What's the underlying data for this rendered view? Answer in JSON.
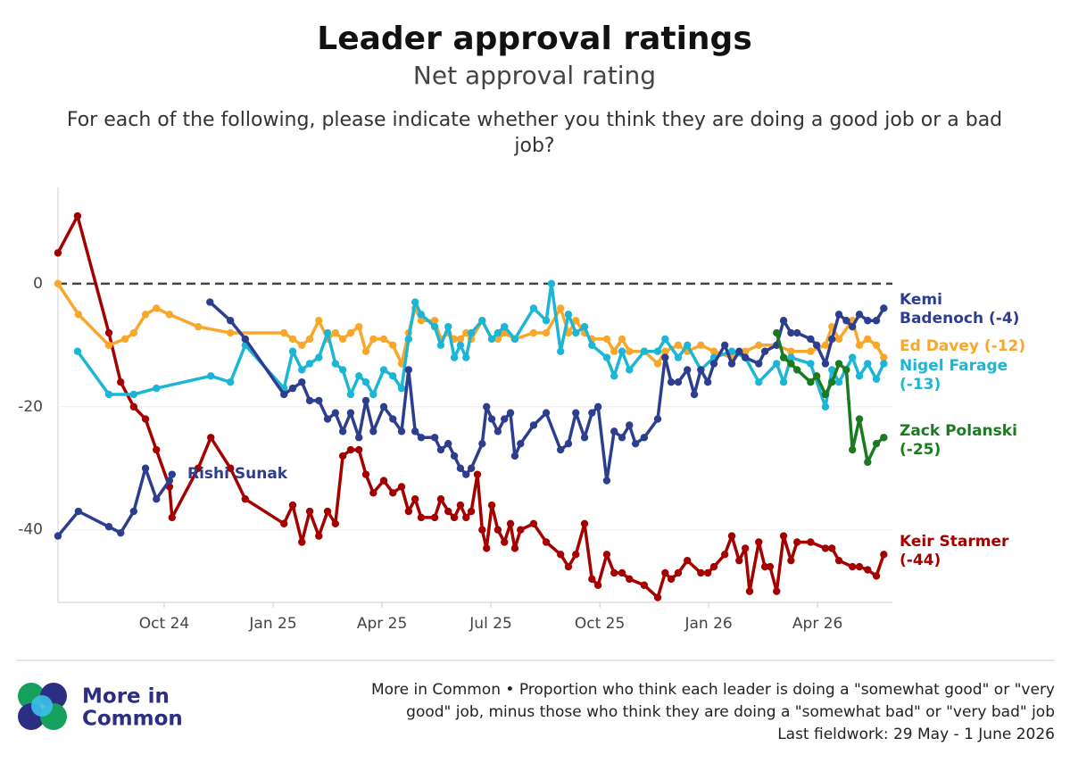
{
  "chart_data": {
    "type": "line",
    "title": "Leader approval ratings",
    "subtitle": "Net approval rating",
    "question": [
      "For each of the following, please indicate whether you think they are doing a good job or a bad",
      "job?"
    ],
    "xlim": [
      2024.5,
      2026.43
    ],
    "xticks": [
      {
        "value": 2024.75,
        "label": "Oct 24"
      },
      {
        "value": 2025.0,
        "label": "Jan 25"
      },
      {
        "value": 2025.25,
        "label": "Apr 25"
      },
      {
        "value": 2025.5,
        "label": "Jul 25"
      },
      {
        "value": 2025.75,
        "label": "Oct 25"
      },
      {
        "value": 2026.0,
        "label": "Jan 26"
      },
      {
        "value": 2026.25,
        "label": "Apr 26"
      }
    ],
    "ylim": [
      -51.5,
      15.5
    ],
    "yticks": [
      -40,
      -20,
      0
    ],
    "grid": true,
    "reference_line": 0,
    "series": [
      {
        "label_lines": [
          "Keir Starmer",
          "(-44)"
        ],
        "color": "#a50000",
        "x": [
          2024.506,
          2024.551,
          2024.623,
          2024.65,
          2024.68,
          2024.707,
          2024.732,
          2024.762,
          2024.768,
          2024.828,
          2024.857,
          2024.902,
          2024.936,
          2025.025,
          2025.045,
          2025.066,
          2025.084,
          2025.105,
          2025.125,
          2025.143,
          2025.16,
          2025.178,
          2025.197,
          2025.213,
          2025.23,
          2025.254,
          2025.275,
          2025.295,
          2025.311,
          2025.326,
          2025.34,
          2025.371,
          2025.385,
          2025.402,
          2025.416,
          2025.43,
          2025.443,
          2025.455,
          2025.469,
          2025.48,
          2025.49,
          2025.502,
          2025.516,
          2025.531,
          2025.545,
          2025.555,
          2025.568,
          2025.598,
          2025.627,
          2025.66,
          2025.678,
          2025.695,
          2025.715,
          2025.732,
          2025.746,
          2025.766,
          2025.783,
          2025.801,
          2025.818,
          2025.852,
          2025.883,
          2025.9,
          2025.914,
          2025.93,
          2025.951,
          2025.982,
          2025.998,
          2026.012,
          2026.037,
          2026.053,
          2026.07,
          2026.084,
          2026.094,
          2026.115,
          2026.129,
          2026.141,
          2026.156,
          2026.172,
          2026.189,
          2026.203,
          2026.234,
          2026.268,
          2026.283,
          2026.299,
          2026.33,
          2026.346,
          2026.365,
          2026.385,
          2026.402
        ],
        "values": [
          5,
          11,
          -8,
          -16,
          -20,
          -22,
          -27,
          -33,
          -38,
          -30,
          -25,
          -30,
          -35,
          -39,
          -36,
          -42,
          -37,
          -41,
          -37,
          -39,
          -28,
          -27,
          -27,
          -31,
          -34,
          -32,
          -34,
          -33,
          -37,
          -35,
          -38,
          -38,
          -35,
          -37,
          -38,
          -36,
          -38,
          -37,
          -31,
          -40,
          -43,
          -36,
          -40,
          -42,
          -39,
          -43,
          -40,
          -39,
          -42,
          -44,
          -46,
          -44,
          -39,
          -48,
          -49,
          -44,
          -47,
          -47,
          -48,
          -49,
          -51,
          -47,
          -48,
          -47,
          -45,
          -47,
          -47,
          -46,
          -44,
          -41,
          -45,
          -43,
          -50,
          -42,
          -46,
          -46,
          -50,
          -41,
          -45,
          -42,
          -42,
          -43,
          -43,
          -45,
          -46,
          -46,
          -46.5,
          -47.5,
          -44
        ]
      },
      {
        "label_lines": [
          "Ed Davey (-12)"
        ],
        "color": "#f9a72b",
        "x": [
          2024.506,
          2024.553,
          2024.623,
          2024.66,
          2024.68,
          2024.707,
          2024.732,
          2024.762,
          2024.828,
          2024.902,
          2025.025,
          2025.045,
          2025.066,
          2025.084,
          2025.105,
          2025.125,
          2025.143,
          2025.16,
          2025.178,
          2025.197,
          2025.213,
          2025.23,
          2025.254,
          2025.275,
          2025.295,
          2025.311,
          2025.326,
          2025.34,
          2025.371,
          2025.385,
          2025.402,
          2025.416,
          2025.43,
          2025.443,
          2025.455,
          2025.48,
          2025.502,
          2025.516,
          2025.531,
          2025.555,
          2025.598,
          2025.627,
          2025.66,
          2025.678,
          2025.695,
          2025.715,
          2025.732,
          2025.766,
          2025.783,
          2025.801,
          2025.818,
          2025.852,
          2025.883,
          2025.9,
          2025.93,
          2025.951,
          2025.982,
          2026.012,
          2026.053,
          2026.084,
          2026.115,
          2026.156,
          2026.189,
          2026.234,
          2026.268,
          2026.283,
          2026.299,
          2026.33,
          2026.346,
          2026.365,
          2026.385,
          2026.402
        ],
        "values": [
          0,
          -5,
          -10,
          -9,
          -8,
          -5,
          -4,
          -5,
          -7,
          -8,
          -8,
          -9,
          -10,
          -9,
          -6,
          -9,
          -8,
          -9,
          -8,
          -7,
          -11,
          -9,
          -9,
          -10,
          -13,
          -8,
          -4,
          -6,
          -6,
          -9,
          -8,
          -9,
          -9,
          -8,
          -9,
          -6,
          -9,
          -9,
          -8,
          -9,
          -8,
          -8,
          -4,
          -8,
          -6,
          -8,
          -9,
          -9,
          -11,
          -9,
          -11,
          -11,
          -13,
          -11,
          -10,
          -11,
          -10,
          -11,
          -12,
          -11,
          -10,
          -10,
          -11,
          -11,
          -10,
          -7,
          -9,
          -6,
          -10,
          -9,
          -10,
          -12
        ]
      },
      {
        "label_lines": [
          "Nigel Farage",
          "(-13)"
        ],
        "color": "#1bb6d6",
        "x": [
          2024.551,
          2024.623,
          2024.68,
          2024.732,
          2024.857,
          2024.902,
          2024.936,
          2025.025,
          2025.045,
          2025.066,
          2025.084,
          2025.105,
          2025.125,
          2025.143,
          2025.16,
          2025.178,
          2025.197,
          2025.213,
          2025.23,
          2025.254,
          2025.275,
          2025.295,
          2025.311,
          2025.326,
          2025.34,
          2025.371,
          2025.385,
          2025.402,
          2025.416,
          2025.43,
          2025.443,
          2025.455,
          2025.48,
          2025.502,
          2025.516,
          2025.531,
          2025.555,
          2025.598,
          2025.627,
          2025.639,
          2025.66,
          2025.678,
          2025.695,
          2025.715,
          2025.732,
          2025.766,
          2025.783,
          2025.801,
          2025.818,
          2025.852,
          2025.883,
          2025.9,
          2025.93,
          2025.951,
          2025.982,
          2026.012,
          2026.053,
          2026.084,
          2026.115,
          2026.156,
          2026.172,
          2026.189,
          2026.234,
          2026.268,
          2026.283,
          2026.299,
          2026.33,
          2026.346,
          2026.365,
          2026.385,
          2026.402
        ],
        "values": [
          -11,
          -18,
          -18,
          -17,
          -15,
          -16,
          -10,
          -17,
          -11,
          -14,
          -13,
          -12,
          -8,
          -13,
          -14,
          -18,
          -15,
          -16,
          -18,
          -14,
          -15,
          -17,
          -9,
          -3,
          -5,
          -7,
          -10,
          -7,
          -12,
          -10,
          -12,
          -8,
          -6,
          -9,
          -8,
          -7,
          -9,
          -4,
          -6,
          0,
          -11,
          -5,
          -8,
          -7,
          -10,
          -12,
          -15,
          -11,
          -14,
          -11,
          -11,
          -9,
          -12,
          -10,
          -14,
          -12,
          -11,
          -12,
          -16,
          -13,
          -16,
          -12,
          -13,
          -20,
          -14,
          -16,
          -12,
          -15,
          -13,
          -15.5,
          -13
        ]
      },
      {
        "name": "Rishi Sunak",
        "color": "#2e3e8f",
        "x": [
          2024.506,
          2024.553,
          2024.623,
          2024.65,
          2024.68,
          2024.707,
          2024.732,
          2024.762,
          2024.768
        ],
        "values": [
          -41,
          -37,
          -39.5,
          -40.5,
          -37,
          -30,
          -35,
          -32,
          -31
        ]
      },
      {
        "label_lines": [
          "Kemi",
          "Badenoch (-4)"
        ],
        "color": "#2e3e8f",
        "x": [
          2024.855,
          2024.902,
          2024.936,
          2025.025,
          2025.045,
          2025.066,
          2025.084,
          2025.105,
          2025.125,
          2025.143,
          2025.16,
          2025.178,
          2025.197,
          2025.213,
          2025.23,
          2025.254,
          2025.275,
          2025.295,
          2025.311,
          2025.326,
          2025.34,
          2025.371,
          2025.385,
          2025.402,
          2025.416,
          2025.43,
          2025.443,
          2025.455,
          2025.48,
          2025.49,
          2025.502,
          2025.516,
          2025.531,
          2025.545,
          2025.555,
          2025.568,
          2025.598,
          2025.627,
          2025.66,
          2025.678,
          2025.695,
          2025.715,
          2025.732,
          2025.746,
          2025.766,
          2025.783,
          2025.801,
          2025.818,
          2025.832,
          2025.852,
          2025.883,
          2025.9,
          2025.914,
          2025.93,
          2025.951,
          2025.967,
          2025.982,
          2025.998,
          2026.012,
          2026.037,
          2026.053,
          2026.07,
          2026.084,
          2026.115,
          2026.129,
          2026.156,
          2026.172,
          2026.189,
          2026.203,
          2026.234,
          2026.248,
          2026.268,
          2026.283,
          2026.299,
          2026.316,
          2026.33,
          2026.346,
          2026.365,
          2026.385,
          2026.402
        ],
        "values": [
          -3,
          -6,
          -9,
          -18,
          -17,
          -16,
          -19,
          -19,
          -22,
          -21,
          -24,
          -21,
          -25,
          -19,
          -24,
          -20,
          -22,
          -24,
          -14,
          -24,
          -25,
          -25,
          -27,
          -26,
          -28,
          -30,
          -31,
          -30,
          -26,
          -20,
          -22,
          -24,
          -22,
          -21,
          -28,
          -26,
          -23,
          -21,
          -27,
          -26,
          -21,
          -25,
          -21,
          -20,
          -32,
          -24,
          -25,
          -23,
          -26,
          -25,
          -22,
          -12,
          -16,
          -16,
          -14,
          -18,
          -14,
          -16,
          -13,
          -10,
          -13,
          -11,
          -12,
          -13,
          -11,
          -10,
          -6,
          -8,
          -8,
          -9,
          -10,
          -13,
          -9,
          -5,
          -6,
          -7,
          -5,
          -6,
          -6,
          -4
        ]
      },
      {
        "label_lines": [
          "Zack Polanski",
          "(-25)"
        ],
        "color": "#1a7a1f",
        "x": [
          2026.156,
          2026.172,
          2026.189,
          2026.203,
          2026.234,
          2026.248,
          2026.268,
          2026.283,
          2026.299,
          2026.316,
          2026.33,
          2026.346,
          2026.365,
          2026.385,
          2026.402
        ],
        "values": [
          -8,
          -12,
          -13,
          -14,
          -16,
          -15,
          -18,
          -16,
          -13,
          -14,
          -27,
          -22,
          -29,
          -26,
          -25
        ]
      }
    ],
    "source": [
      "More in Common • Proportion who think each leader is doing a \"somewhat good\" or \"very",
      "good\" job, minus those who think they are doing a \"somewhat bad\" or \"very bad\" job",
      "Last fieldwork: 29 May - 1 June 2026"
    ],
    "logo_text": [
      "More in",
      "Common"
    ]
  }
}
